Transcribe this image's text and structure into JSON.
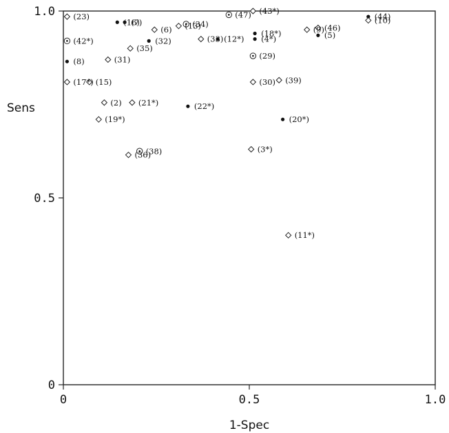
{
  "chart_data": {
    "type": "scatter",
    "xlabel": "1-Spec",
    "ylabel": "Sens",
    "xlim": [
      0,
      1.0
    ],
    "ylim": [
      0,
      1.0
    ],
    "x_ticks": [
      "0",
      "0.5",
      "1.0"
    ],
    "y_ticks": [
      "0",
      "0.5",
      "1.0"
    ],
    "grid": false,
    "legend": "none",
    "marker_types": [
      "diamond",
      "dot",
      "circle-dot"
    ],
    "points": [
      {
        "label": "(23)",
        "x": 0.01,
        "y": 0.985,
        "marker": "diamond"
      },
      {
        "label": "(42*)",
        "x": 0.01,
        "y": 0.92,
        "marker": "circle-dot"
      },
      {
        "label": "(8)",
        "x": 0.01,
        "y": 0.865,
        "marker": "dot"
      },
      {
        "label": "(17*)",
        "x": 0.01,
        "y": 0.81,
        "marker": "diamond"
      },
      {
        "label": "(15)",
        "x": 0.07,
        "y": 0.81,
        "marker": "diamond"
      },
      {
        "label": "(7)",
        "x": 0.165,
        "y": 0.97,
        "marker": "dot"
      },
      {
        "label": "(16)",
        "x": 0.145,
        "y": 0.97,
        "marker": "dot"
      },
      {
        "label": "(31)",
        "x": 0.12,
        "y": 0.87,
        "marker": "diamond"
      },
      {
        "label": "(2)",
        "x": 0.11,
        "y": 0.755,
        "marker": "diamond"
      },
      {
        "label": "(21*)",
        "x": 0.185,
        "y": 0.755,
        "marker": "diamond"
      },
      {
        "label": "(19*)",
        "x": 0.095,
        "y": 0.71,
        "marker": "diamond"
      },
      {
        "label": "(6)",
        "x": 0.245,
        "y": 0.95,
        "marker": "diamond"
      },
      {
        "label": "(34)",
        "x": 0.33,
        "y": 0.965,
        "marker": "circle-dot"
      },
      {
        "label": "(13)",
        "x": 0.31,
        "y": 0.96,
        "marker": "diamond"
      },
      {
        "label": "(32)",
        "x": 0.23,
        "y": 0.92,
        "marker": "dot"
      },
      {
        "label": "(35)",
        "x": 0.18,
        "y": 0.9,
        "marker": "diamond"
      },
      {
        "label": "(33)",
        "x": 0.37,
        "y": 0.925,
        "marker": "diamond"
      },
      {
        "label": "(12*)",
        "x": 0.415,
        "y": 0.925,
        "marker": "dot"
      },
      {
        "label": "(47)",
        "x": 0.445,
        "y": 0.99,
        "marker": "circle-dot"
      },
      {
        "label": "(43*)",
        "x": 0.51,
        "y": 1.0,
        "marker": "diamond"
      },
      {
        "label": "(18*)",
        "x": 0.515,
        "y": 0.94,
        "marker": "dot"
      },
      {
        "label": "(4*)",
        "x": 0.515,
        "y": 0.925,
        "marker": "dot"
      },
      {
        "label": "(29)",
        "x": 0.51,
        "y": 0.88,
        "marker": "circle-dot"
      },
      {
        "label": "(30)",
        "x": 0.51,
        "y": 0.81,
        "marker": "diamond"
      },
      {
        "label": "(39)",
        "x": 0.58,
        "y": 0.815,
        "marker": "diamond"
      },
      {
        "label": "(22*)",
        "x": 0.335,
        "y": 0.745,
        "marker": "dot"
      },
      {
        "label": "(20*)",
        "x": 0.59,
        "y": 0.71,
        "marker": "dot"
      },
      {
        "label": "(38)",
        "x": 0.205,
        "y": 0.625,
        "marker": "circle-dot"
      },
      {
        "label": "(36)",
        "x": 0.175,
        "y": 0.615,
        "marker": "diamond"
      },
      {
        "label": "(3*)",
        "x": 0.505,
        "y": 0.63,
        "marker": "diamond"
      },
      {
        "label": "(9)",
        "x": 0.655,
        "y": 0.95,
        "marker": "diamond"
      },
      {
        "label": "(46)",
        "x": 0.685,
        "y": 0.955,
        "marker": "diamond"
      },
      {
        "label": "(5)",
        "x": 0.685,
        "y": 0.935,
        "marker": "dot"
      },
      {
        "label": "(44)",
        "x": 0.82,
        "y": 0.985,
        "marker": "dot"
      },
      {
        "label": "(10)",
        "x": 0.82,
        "y": 0.975,
        "marker": "diamond"
      },
      {
        "label": "(11*)",
        "x": 0.605,
        "y": 0.4,
        "marker": "diamond"
      }
    ]
  }
}
